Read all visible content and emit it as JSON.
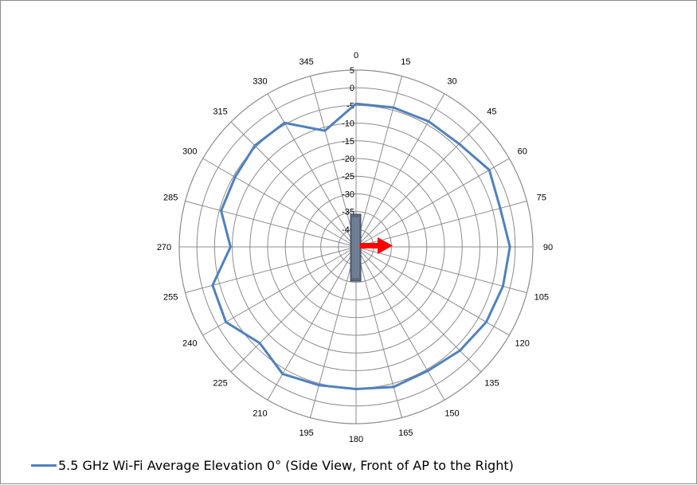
{
  "chart_data": {
    "type": "line",
    "subtype": "polar",
    "title": "",
    "angle_direction": "clockwise",
    "angle_zero": "top",
    "angle_step": 15,
    "angle_labels": [
      "0",
      "15",
      "30",
      "45",
      "60",
      "75",
      "90",
      "105",
      "120",
      "135",
      "150",
      "165",
      "180",
      "195",
      "210",
      "225",
      "240",
      "255",
      "270",
      "285",
      "300",
      "315",
      "330",
      "345"
    ],
    "radial_range": [
      -45,
      5
    ],
    "radial_ticks": [
      5,
      0,
      -5,
      -10,
      -15,
      -20,
      -25,
      -30,
      -35,
      -40
    ],
    "radial_tick_labels": [
      "5",
      "0",
      "-5",
      "-10",
      "-15",
      "-20",
      "-25",
      "-30",
      "-35",
      "-40"
    ],
    "grid": true,
    "legend_position": "bottom",
    "series": [
      {
        "name": "5.5 GHz Wi-Fi Average Elevation 0° (Side View, Front of AP to the Right)",
        "color": "#4f81bd",
        "angles": [
          0,
          15,
          30,
          45,
          60,
          75,
          90,
          105,
          120,
          135,
          150,
          165,
          180,
          195,
          210,
          225,
          240,
          255,
          270,
          285,
          300,
          315,
          330,
          345
        ],
        "values": [
          -4.5,
          -4.2,
          -4.0,
          -3.8,
          -1.5,
          -2.8,
          -1.5,
          -2.0,
          -2.5,
          -3.5,
          -4.5,
          -4.0,
          -4.8,
          -4.5,
          -3.5,
          -6.5,
          -2.5,
          -3.0,
          -9.5,
          -5.5,
          -5.5,
          -4.5,
          -4.5,
          -11.0
        ]
      }
    ],
    "annotations": [
      {
        "type": "arrow",
        "direction_deg": 90,
        "color": "#ff0000",
        "meaning": "front of AP"
      },
      {
        "type": "device-icon",
        "color": "#5a6a80"
      }
    ]
  }
}
